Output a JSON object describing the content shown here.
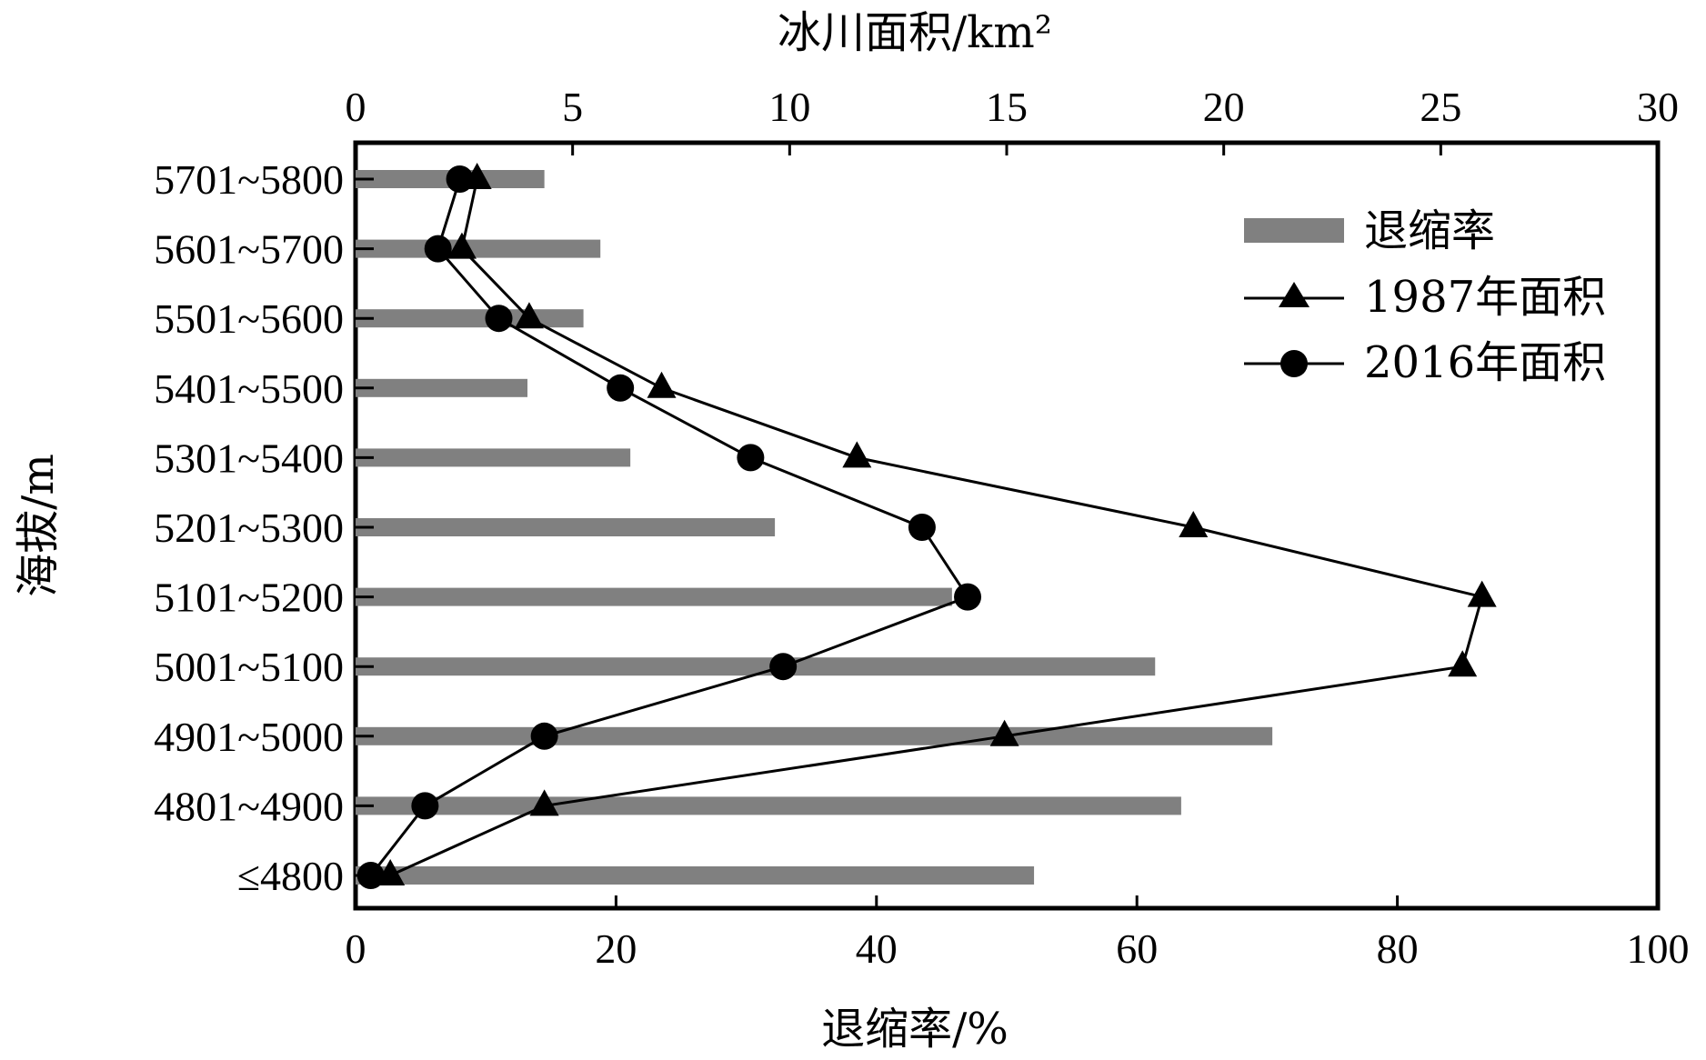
{
  "chart_data": {
    "type": "bar",
    "orientation": "horizontal",
    "categories": [
      "≤4800",
      "4801~4900",
      "4901~5000",
      "5001~5100",
      "5101~5200",
      "5201~5300",
      "5301~5400",
      "5401~5500",
      "5501~5600",
      "5601~5700",
      "5701~5800"
    ],
    "ylabel": "海拔/m",
    "xlabel_bottom": "退缩率/%",
    "xlabel_top": "冰川面积/km²",
    "xlim_bottom": [
      0,
      100
    ],
    "xlim_top": [
      0,
      30
    ],
    "xticks_bottom": [
      0,
      20,
      40,
      60,
      80,
      100
    ],
    "xticks_top": [
      0,
      5,
      10,
      15,
      20,
      25,
      30
    ],
    "legend_position": "top-right",
    "grid": false,
    "series": [
      {
        "name": "退缩率",
        "kind": "bar",
        "axis": "bottom",
        "color": "#808080",
        "values": [
          52.1,
          63.4,
          70.4,
          61.4,
          45.8,
          32.2,
          21.1,
          13.2,
          17.5,
          18.8,
          14.5
        ]
      },
      {
        "name": "1987年面积",
        "kind": "line",
        "marker": "triangle",
        "axis": "top",
        "color": "#000000",
        "values": [
          0.8,
          4.35,
          14.95,
          25.5,
          25.95,
          19.3,
          11.55,
          7.05,
          4.0,
          2.45,
          2.8
        ]
      },
      {
        "name": "2016年面积",
        "kind": "line",
        "marker": "circle",
        "axis": "top",
        "color": "#000000",
        "values": [
          0.35,
          1.6,
          4.35,
          9.85,
          14.1,
          13.05,
          9.1,
          6.1,
          3.3,
          1.9,
          2.4
        ]
      }
    ]
  }
}
